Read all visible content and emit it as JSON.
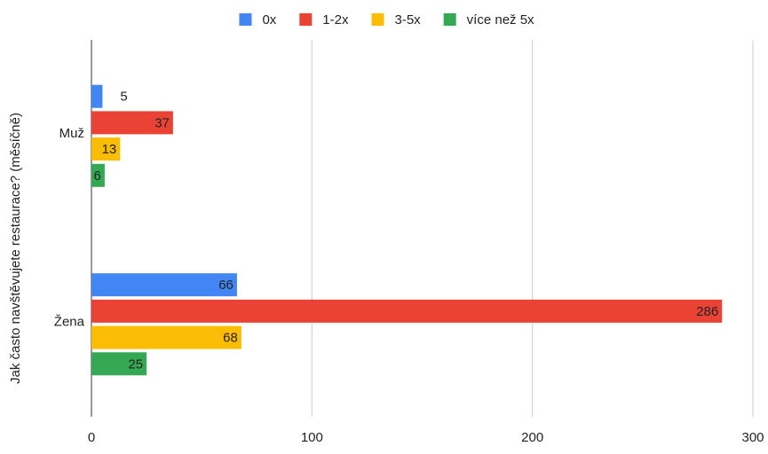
{
  "chart_data": {
    "type": "barh",
    "y_label": "Jak často navštěvujete restaurace? (měsíčně)",
    "categories": [
      "Muž",
      "Žena"
    ],
    "series": [
      {
        "name": "0x",
        "color": "#4285f4",
        "values": [
          5,
          66
        ]
      },
      {
        "name": "1-2x",
        "color": "#ea4335",
        "values": [
          37,
          286
        ]
      },
      {
        "name": "3-5x",
        "color": "#fbbc04",
        "values": [
          13,
          68
        ]
      },
      {
        "name": "více než 5x",
        "color": "#34a853",
        "values": [
          6,
          25
        ]
      }
    ],
    "xlim": [
      0,
      300
    ],
    "xticks": [
      0,
      100,
      200,
      300
    ],
    "grid": true,
    "legend": "top"
  }
}
